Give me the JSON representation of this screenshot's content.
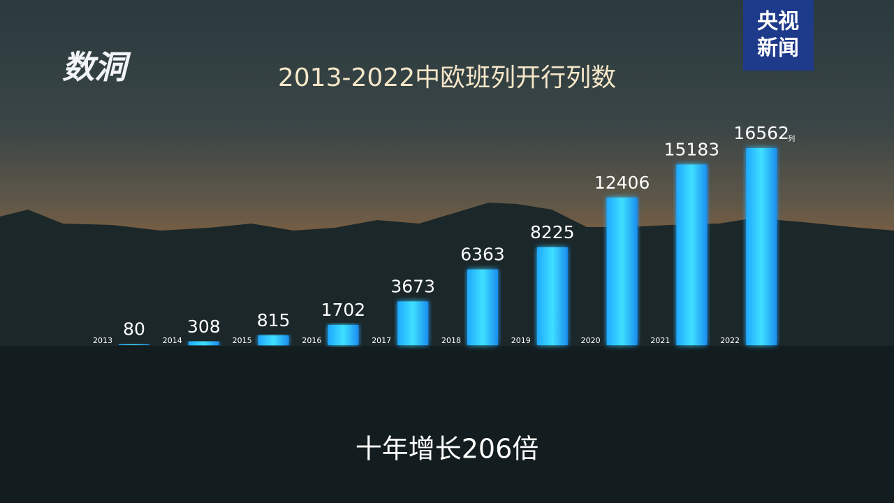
{
  "logo": "数洞",
  "watermark": [
    "央视",
    "新闻"
  ],
  "chart_data": {
    "type": "bar",
    "title": "2013-2022中欧班列开行列数",
    "categories": [
      "2013",
      "2014",
      "2015",
      "2016",
      "2017",
      "2018",
      "2019",
      "2020",
      "2021",
      "2022"
    ],
    "values": [
      80,
      308,
      815,
      1702,
      3673,
      6363,
      8225,
      12406,
      15183,
      16562
    ],
    "unit": "列",
    "color": "#2ad4ff",
    "caption": "十年增长206倍"
  }
}
